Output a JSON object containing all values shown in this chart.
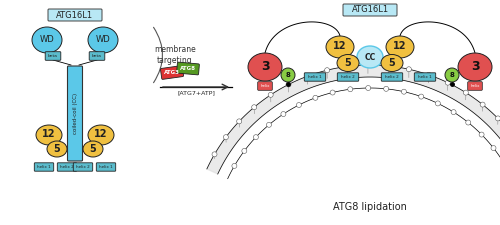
{
  "bg_color": "#ffffff",
  "light_blue": "#5bc8e8",
  "light_blue_pale": "#b8e8f5",
  "teal_box": "#5bbccc",
  "yellow": "#f0c040",
  "red_atg3": "#e05050",
  "red_atg3_dark": "#cc3333",
  "green_atg8": "#70b840",
  "green_small": "#88cc44",
  "dark": "#222222",
  "title_left": "ATG16L1",
  "title_right": "ATG16L1",
  "bottom_label": "ATG8 lipidation",
  "membrane_label": "membrane\ntargeting",
  "reaction_label": "[ATG7+ATP]"
}
